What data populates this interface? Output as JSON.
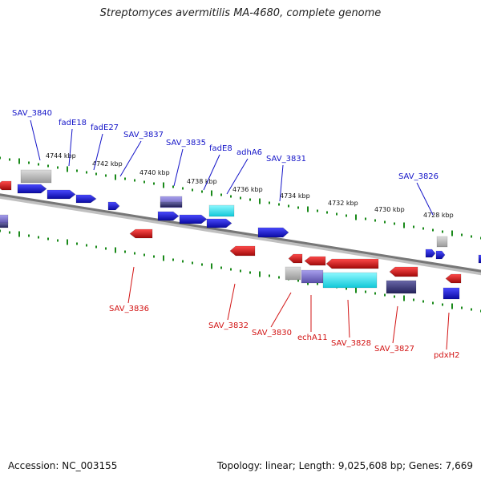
{
  "header": {
    "title": "Streptomyces avermitilis MA-4680, complete genome"
  },
  "footer": {
    "accession": "Accession: NC_003155",
    "summary": "Topology: linear; Length: 9,025,608 bp; Genes: 7,669"
  },
  "colors": {
    "forward_gene": "#1010e0",
    "reverse_gene": "#e01010",
    "backbone": "#777777",
    "ticks": "#1a8a1a",
    "label_forward": "#1414c8",
    "label_reverse": "#d21414",
    "other_feature_gray": "#b8b8b8",
    "other_feature_cyan": "#22e6ee",
    "other_feature_purple": "#7a70c8",
    "other_feature_navy": "#3c3a78"
  },
  "scale": {
    "unit": "kbp",
    "labels": [
      "4744 kbp",
      "4742 kbp",
      "4740 kbp",
      "4738 kbp",
      "4736 kbp",
      "4734 kbp",
      "4732 kbp",
      "4730 kbp",
      "4728 kbp"
    ]
  },
  "features": [
    {
      "name": "SAV_3840",
      "strand": "+"
    },
    {
      "name": "fadE18",
      "strand": "+"
    },
    {
      "name": "fadE27",
      "strand": "+"
    },
    {
      "name": "SAV_3837",
      "strand": "+"
    },
    {
      "name": "SAV_3835",
      "strand": "+"
    },
    {
      "name": "fadE8",
      "strand": "+"
    },
    {
      "name": "adhA6",
      "strand": "+"
    },
    {
      "name": "SAV_3831",
      "strand": "+"
    },
    {
      "name": "SAV_3826",
      "strand": "+"
    },
    {
      "name": "SAV_3836",
      "strand": "-"
    },
    {
      "name": "SAV_3832",
      "strand": "-"
    },
    {
      "name": "SAV_3830",
      "strand": "-"
    },
    {
      "name": "echA11",
      "strand": "-"
    },
    {
      "name": "SAV_3828",
      "strand": "-"
    },
    {
      "name": "SAV_3827",
      "strand": "-"
    },
    {
      "name": "pdxH2",
      "strand": "-"
    }
  ]
}
